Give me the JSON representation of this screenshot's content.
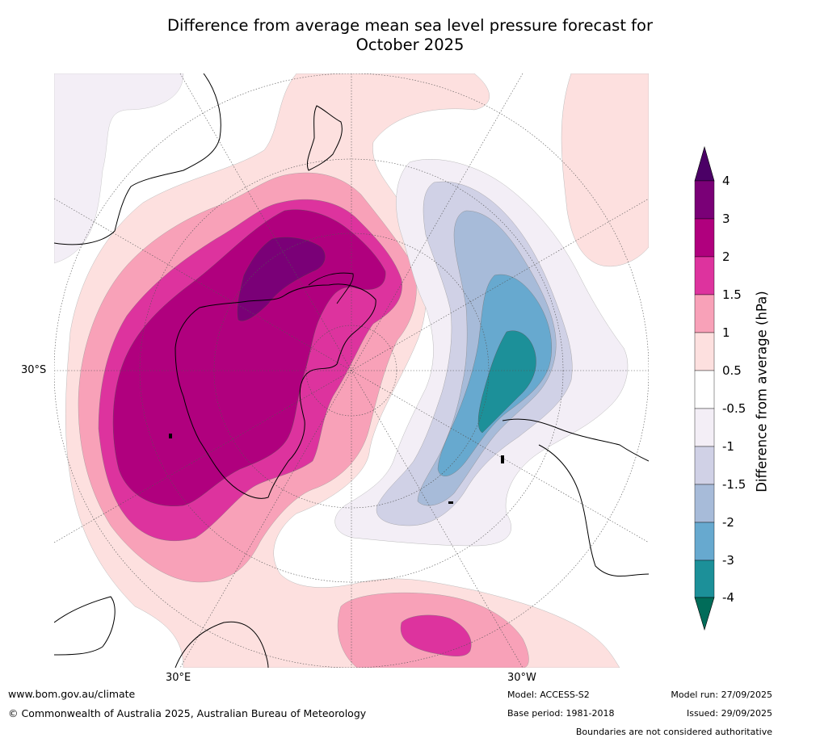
{
  "title": {
    "line1": "Difference from average mean sea level pressure forecast for",
    "line2": "October 2025"
  },
  "map": {
    "labels": {
      "lat_30s": "30°S",
      "lon_30e": "30°E",
      "lon_30w": "30°W"
    },
    "land_coastline": "black",
    "projection": "south polar stereographic"
  },
  "colorbar": {
    "title": "Difference from average (hPa)",
    "ticks": [
      "4",
      "3",
      "2",
      "1.5",
      "1",
      "0.5",
      "-0.5",
      "-1",
      "-1.5",
      "-2",
      "-3",
      "-4"
    ],
    "colors": {
      "gt4": "#4b0066",
      "3_4": "#7a0077",
      "2_3": "#b0007e",
      "1.5_2": "#dd339e",
      "1_1.5": "#f8a1b8",
      "0.5_1": "#fde0df",
      "neutral": "#ffffff",
      "m1_m0.5": "#f3eef6",
      "m1.5_m1": "#d0d1e6",
      "m2_m1.5": "#a7bbd9",
      "m3_m2": "#67a9cf",
      "m4_m3": "#1c9099",
      "lt_m4": "#016c59"
    }
  },
  "footer": {
    "website": "www.bom.gov.au/climate",
    "copyright": "© Commonwealth of Australia 2025, Australian Bureau of Meteorology",
    "model": "Model: ACCESS-S2",
    "base_period": "Base period: 1981-2018",
    "model_run": "Model run: 27/09/2025",
    "issued": "Issued: 29/09/2025",
    "disclaimer": "Boundaries are not considered authoritative"
  }
}
